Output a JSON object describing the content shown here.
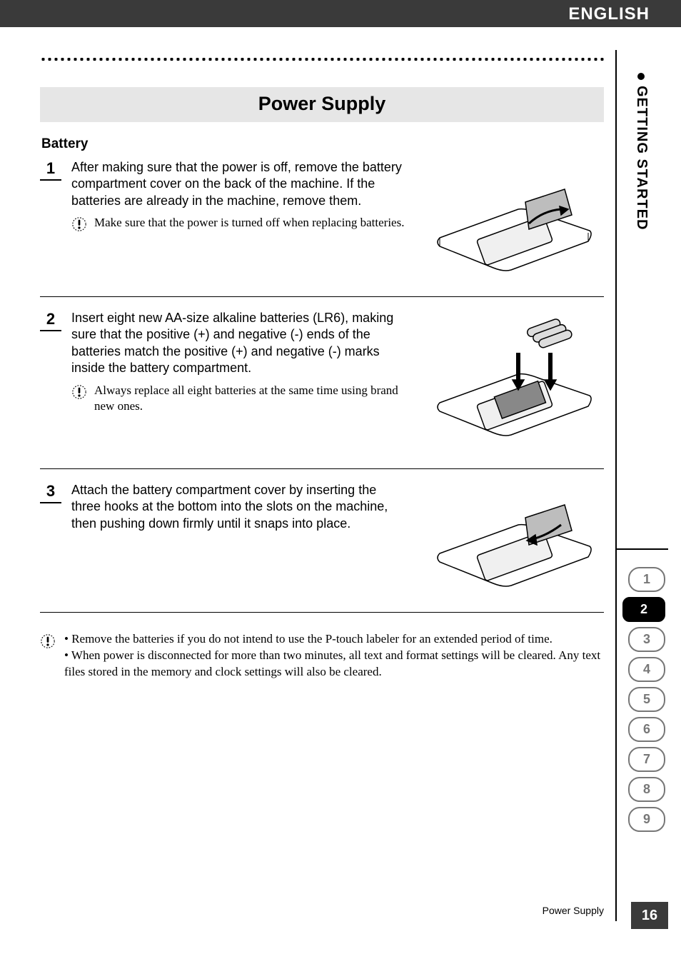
{
  "language": "ENGLISH",
  "section_label": "GETTING STARTED",
  "title": "Power Supply",
  "subheading": "Battery",
  "steps": [
    {
      "num": "1",
      "text": "After making sure that the power is off, remove the battery compartment cover on the back of the machine. If the batteries are already in the machine, remove them.",
      "note": "Make sure that the power is turned off when replacing batteries."
    },
    {
      "num": "2",
      "text": "Insert eight new AA-size alkaline batteries (LR6), making sure that the positive (+) and negative (-) ends of the batteries match the positive (+) and negative (-) marks inside the battery compartment.",
      "note": "Always replace all eight batteries at the same time using brand new ones."
    },
    {
      "num": "3",
      "text": "Attach the battery compartment cover by inserting the three hooks at the bottom into the slots on the machine, then pushing down firmly until it snaps into place.",
      "note": null
    }
  ],
  "final_notes": [
    "Remove the batteries if you do not intend to use the P-touch labeler for an extended period of time.",
    "When power is disconnected for more than two minutes, all text and format settings will be cleared. Any text files stored in the memory and clock settings will also be cleared."
  ],
  "tabs": [
    "1",
    "2",
    "3",
    "4",
    "5",
    "6",
    "7",
    "8",
    "9"
  ],
  "active_tab": 1,
  "footer_title": "Power Supply",
  "page_number": "16",
  "colors": {
    "header_bg": "#3a3a3a",
    "title_band_bg": "#e6e6e6",
    "tab_inactive_border": "#777777",
    "tab_active_bg": "#000000"
  }
}
